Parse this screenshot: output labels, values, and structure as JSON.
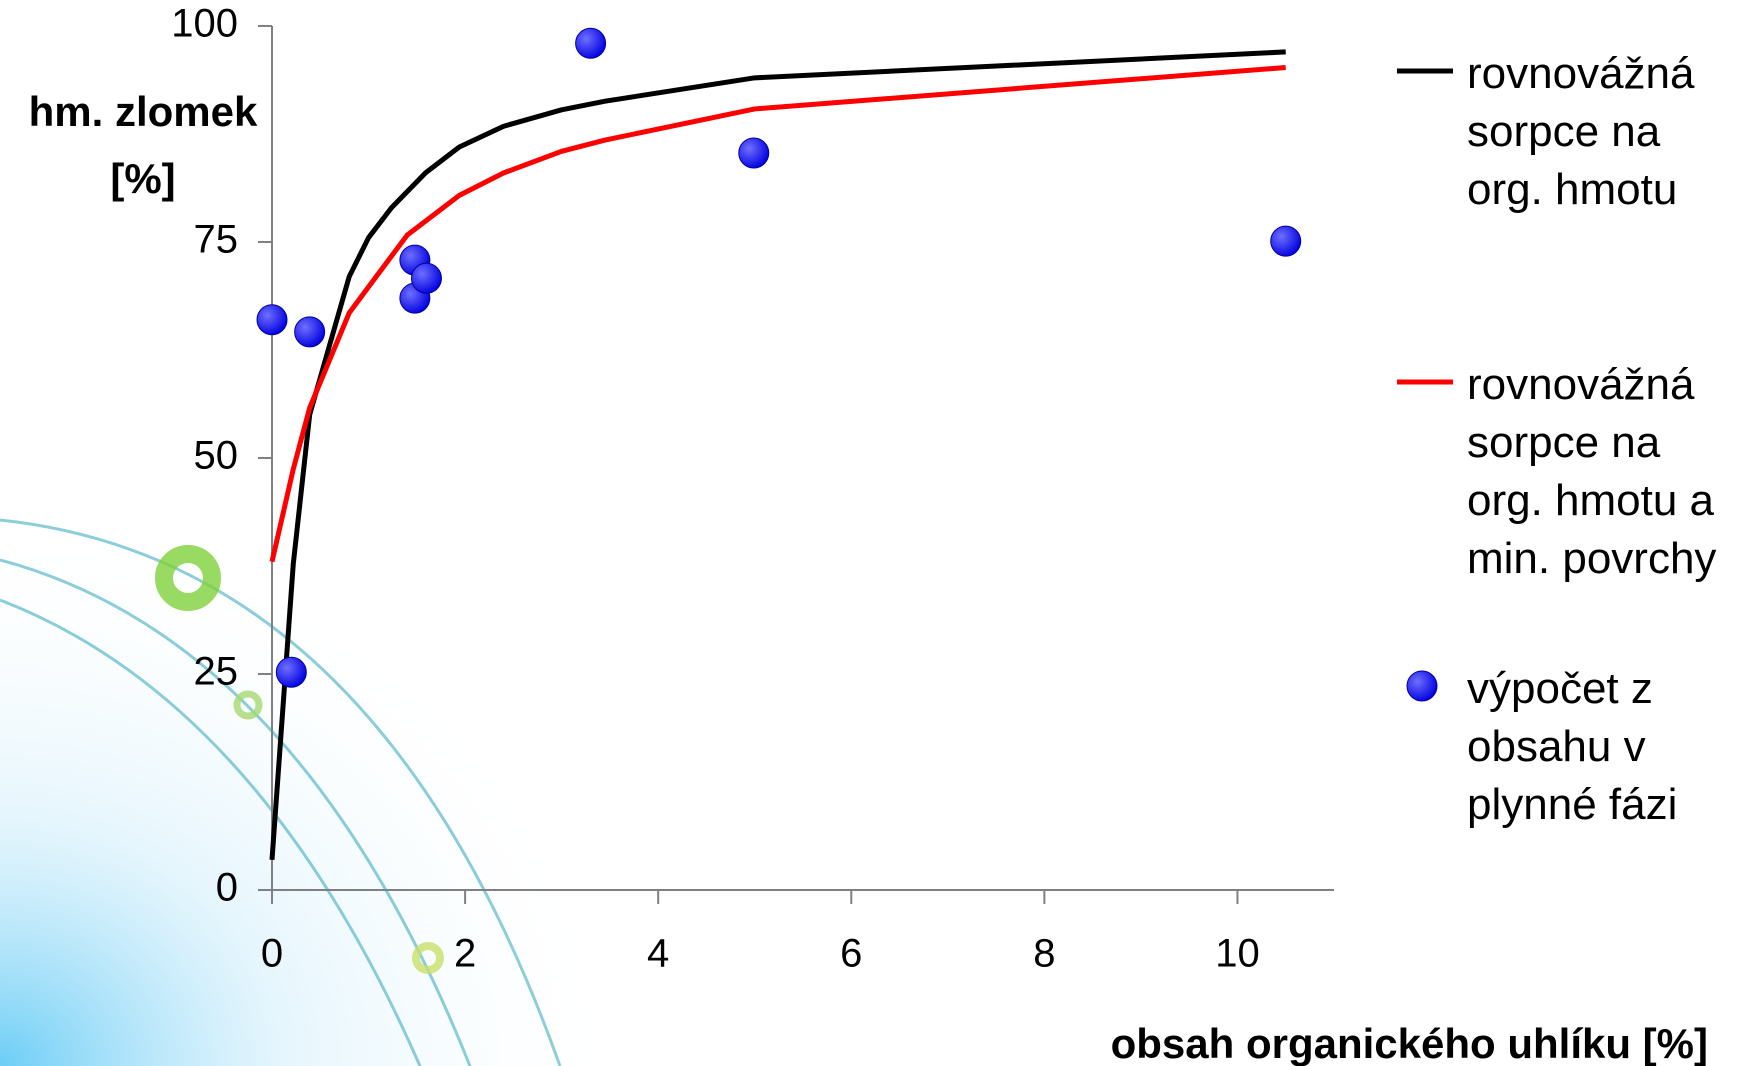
{
  "chart_data": {
    "type": "line",
    "xlabel": "obsah organického uhlíku [%]",
    "ylabel": "hm. zlomek [%]",
    "xlim": [
      0,
      11
    ],
    "xticks": [
      0,
      2,
      4,
      6,
      8,
      10
    ],
    "ylim": [
      0,
      100
    ],
    "yticks": [
      0,
      25,
      50,
      75,
      100
    ],
    "series": [
      {
        "name": "rovnovážná sorpce na org. hmotu",
        "type": "line",
        "color": "#000000",
        "x": [
          0,
          0.22,
          0.39,
          0.8,
          1.0,
          1.24,
          1.59,
          1.94,
          2.4,
          3.0,
          3.45,
          5.0,
          10.5
        ],
        "values": [
          3.5,
          37.7,
          55,
          71,
          75.5,
          79,
          83,
          86,
          88.4,
          90.3,
          91.3,
          94,
          97
        ]
      },
      {
        "name": "rovnovážná sorpce na org. hmotu a min. povrchy",
        "type": "line",
        "color": "#ff0000",
        "x": [
          0,
          0.22,
          0.39,
          0.8,
          1.0,
          1.4,
          1.94,
          2.4,
          3.0,
          3.45,
          5.0,
          10.5
        ],
        "values": [
          38,
          48.7,
          55.8,
          66.8,
          69.8,
          75.8,
          80.4,
          83,
          85.5,
          86.8,
          90.4,
          95.2
        ]
      },
      {
        "name": "výpočet z obsahu v plynné fázi",
        "type": "scatter",
        "color": "#0000ff",
        "x": [
          0,
          0.39,
          0.2,
          1.48,
          1.48,
          1.6,
          3.3,
          4.99,
          10.5
        ],
        "values": [
          66,
          64.6,
          25.2,
          72.9,
          68.5,
          70.8,
          98,
          85.3,
          75.1
        ]
      }
    ]
  }
}
